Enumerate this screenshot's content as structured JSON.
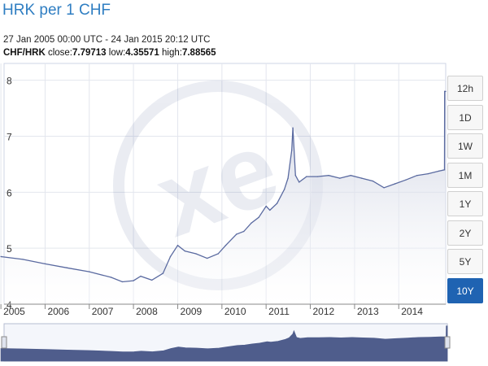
{
  "header": {
    "title": "HRK per 1 CHF",
    "range": "27 Jan 2005 00:00 UTC - 24 Jan 2015 20:12 UTC",
    "pair": "CHF/HRK",
    "close_label": "close:",
    "close": "7.79713",
    "low_label": "low:",
    "low": "4.35571",
    "high_label": "high:",
    "high": "7.88565"
  },
  "timeframes": [
    {
      "label": "12h",
      "active": false
    },
    {
      "label": "1D",
      "active": false
    },
    {
      "label": "1W",
      "active": false
    },
    {
      "label": "1M",
      "active": false
    },
    {
      "label": "1Y",
      "active": false
    },
    {
      "label": "2Y",
      "active": false
    },
    {
      "label": "5Y",
      "active": false
    },
    {
      "label": "10Y",
      "active": true
    }
  ],
  "colors": {
    "line": "#5a6aa0",
    "area_top": "#c3c9dc",
    "navigator": "#4f5d8c",
    "accent": "#1f63b2"
  },
  "chart_data": {
    "type": "area",
    "x": [
      "2005-01",
      "2005-07",
      "2006-01",
      "2006-07",
      "2007-01",
      "2007-07",
      "2007-10",
      "2008-01",
      "2008-03",
      "2008-06",
      "2008-09",
      "2008-11",
      "2009-01",
      "2009-03",
      "2009-06",
      "2009-09",
      "2009-12",
      "2010-02",
      "2010-05",
      "2010-07",
      "2010-09",
      "2010-11",
      "2011-01",
      "2011-02",
      "2011-04",
      "2011-06",
      "2011-07",
      "2011-08",
      "2011-08-10",
      "2011-09",
      "2011-10",
      "2011-12",
      "2012-03",
      "2012-06",
      "2012-09",
      "2012-12",
      "2013-03",
      "2013-06",
      "2013-09",
      "2013-12",
      "2014-03",
      "2014-06",
      "2014-09",
      "2014-12",
      "2015-01-14",
      "2015-01-15",
      "2015-01-24"
    ],
    "y": [
      4.85,
      4.8,
      4.72,
      4.65,
      4.58,
      4.48,
      4.4,
      4.42,
      4.5,
      4.43,
      4.55,
      4.85,
      5.05,
      4.95,
      4.9,
      4.82,
      4.9,
      5.05,
      5.25,
      5.3,
      5.45,
      5.55,
      5.75,
      5.68,
      5.8,
      6.05,
      6.25,
      6.75,
      7.15,
      6.3,
      6.18,
      6.28,
      6.28,
      6.3,
      6.25,
      6.3,
      6.25,
      6.2,
      6.08,
      6.15,
      6.22,
      6.3,
      6.33,
      6.38,
      6.4,
      7.8,
      7.8
    ],
    "xticks": [
      "2005",
      "2006",
      "2007",
      "2008",
      "2009",
      "2010",
      "2011",
      "2012",
      "2013",
      "2014"
    ],
    "yticks": [
      "4",
      "5",
      "6",
      "7",
      "8"
    ],
    "ylim": [
      4,
      8.3
    ],
    "grid": true,
    "watermark": "xe"
  }
}
